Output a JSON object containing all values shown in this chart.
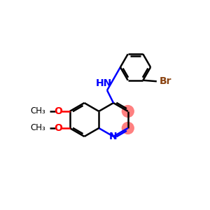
{
  "bg_color": "#ffffff",
  "bond_color": "#000000",
  "n_color": "#0000ff",
  "o_color": "#ff0000",
  "br_color": "#8B4513",
  "nh_color": "#0000ff",
  "highlight_pink": "#ff8080",
  "bond_width": 1.8,
  "dbo": 0.08,
  "figsize": [
    3.0,
    3.0
  ],
  "dpi": 100,
  "xlim": [
    0,
    10
  ],
  "ylim": [
    0,
    10
  ]
}
